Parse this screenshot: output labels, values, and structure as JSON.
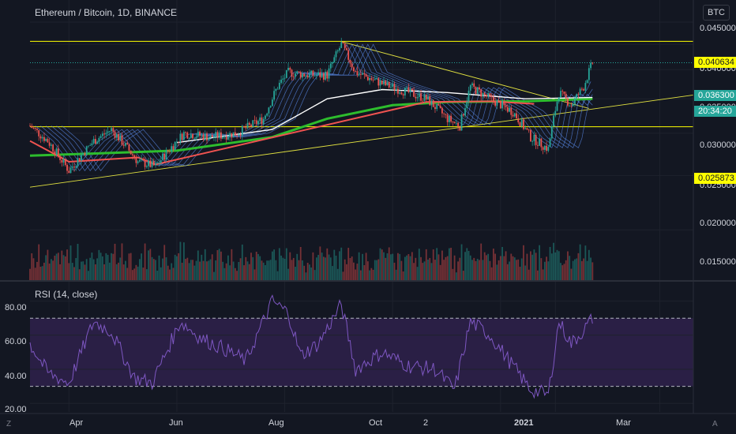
{
  "header": {
    "symbol_title": "Ethereum / Bitcoin, 1D, BINANCE",
    "currency_badge": "BTC"
  },
  "price_axis": {
    "ticks": [
      "0.045000",
      "0.040000",
      "0.035000",
      "0.030000",
      "0.025000",
      "0.020000",
      "0.015000"
    ],
    "level_top": "0.040634",
    "level_bottom": "0.025873",
    "last_price": "0.036300",
    "countdown": "20:34:20"
  },
  "rsi_panel": {
    "title": "RSI (14, close)",
    "ticks": [
      "80.00",
      "60.00",
      "40.00",
      "20.00"
    ]
  },
  "time_axis": {
    "labels": [
      "Apr",
      "Jun",
      "Aug",
      "Oct",
      "2",
      "2021",
      "Mar"
    ]
  },
  "corner_icons": {
    "left": "Z",
    "right": "A"
  },
  "colors": {
    "background": "#131722",
    "up": "#26a69a",
    "down": "#ef5350",
    "level_line": "#ffff00",
    "ma_green": "#2dbd2d",
    "ma_white": "#ffffff",
    "ribbon": "#5b8def",
    "rsi_line": "#7e57c2",
    "rsi_band": "#2a1f45"
  },
  "chart_data": [
    {
      "type": "candlestick",
      "title": "Ethereum / Bitcoin, 1D, BINANCE",
      "x_range": [
        "2020-03-10",
        "2021-03-20"
      ],
      "ylim": [
        0.0115,
        0.0477
      ],
      "y_scale": "log",
      "horizontal_levels": [
        0.040634,
        0.025873
      ],
      "last_price": 0.0363,
      "price_path": [
        [
          "2020-03-10",
          0.026
        ],
        [
          "2020-03-20",
          0.024
        ],
        [
          "2020-04-01",
          0.0205
        ],
        [
          "2020-04-15",
          0.024
        ],
        [
          "2020-04-25",
          0.0255
        ],
        [
          "2020-05-10",
          0.0215
        ],
        [
          "2020-05-20",
          0.021
        ],
        [
          "2020-06-05",
          0.025
        ],
        [
          "2020-06-20",
          0.0245
        ],
        [
          "2020-07-05",
          0.025
        ],
        [
          "2020-07-20",
          0.027
        ],
        [
          "2020-07-28",
          0.032
        ],
        [
          "2020-08-03",
          0.0345
        ],
        [
          "2020-08-15",
          0.034
        ],
        [
          "2020-08-25",
          0.034
        ],
        [
          "2020-09-02",
          0.04
        ],
        [
          "2020-09-10",
          0.0345
        ],
        [
          "2020-09-25",
          0.0325
        ],
        [
          "2020-10-10",
          0.031
        ],
        [
          "2020-10-20",
          0.03
        ],
        [
          "2020-11-01",
          0.027
        ],
        [
          "2020-11-08",
          0.026
        ],
        [
          "2020-11-14",
          0.032
        ],
        [
          "2020-11-25",
          0.03
        ],
        [
          "2020-12-08",
          0.028
        ],
        [
          "2020-12-18",
          0.0245
        ],
        [
          "2020-12-28",
          0.023
        ],
        [
          "2021-01-03",
          0.031
        ],
        [
          "2021-01-10",
          0.029
        ],
        [
          "2021-01-17",
          0.032
        ],
        [
          "2021-01-22",
          0.0363
        ]
      ],
      "moving_averages": [
        {
          "color": "#2dbd2d",
          "path": [
            [
              "2020-03-10",
              0.0222
            ],
            [
              "2020-06-01",
              0.0228
            ],
            [
              "2020-07-25",
              0.0245
            ],
            [
              "2020-08-25",
              0.027
            ],
            [
              "2020-10-01",
              0.029
            ],
            [
              "2020-11-01",
              0.0295
            ],
            [
              "2020-12-15",
              0.0296
            ],
            [
              "2021-01-22",
              0.03
            ]
          ]
        },
        {
          "color": "#ffffff",
          "path": [
            [
              "2020-06-01",
              0.0238
            ],
            [
              "2020-07-25",
              0.0255
            ],
            [
              "2020-08-25",
              0.03
            ],
            [
              "2020-09-25",
              0.0315
            ],
            [
              "2020-11-01",
              0.031
            ],
            [
              "2020-12-15",
              0.03
            ],
            [
              "2021-01-22",
              0.0302
            ]
          ]
        },
        {
          "color": "#ef5350",
          "path": [
            [
              "2020-03-10",
              0.024
            ],
            [
              "2020-04-01",
              0.0215
            ],
            [
              "2020-05-10",
              0.022
            ],
            [
              "2020-05-20",
              0.0212
            ],
            [
              "2020-10-20",
              0.0295
            ],
            [
              "2020-11-25",
              0.0296
            ],
            [
              "2020-12-20",
              0.0292
            ]
          ]
        }
      ]
    },
    {
      "type": "line",
      "title": "RSI (14, close)",
      "x_range": [
        "2020-03-10",
        "2021-03-20"
      ],
      "ylim": [
        15,
        90
      ],
      "bands": [
        30,
        70
      ],
      "values": [
        [
          "2020-03-10",
          55
        ],
        [
          "2020-03-20",
          38
        ],
        [
          "2020-04-01",
          32
        ],
        [
          "2020-04-15",
          68
        ],
        [
          "2020-04-25",
          62
        ],
        [
          "2020-05-08",
          35
        ],
        [
          "2020-05-18",
          32
        ],
        [
          "2020-06-03",
          68
        ],
        [
          "2020-06-15",
          58
        ],
        [
          "2020-06-28",
          52
        ],
        [
          "2020-07-10",
          45
        ],
        [
          "2020-07-25",
          80
        ],
        [
          "2020-08-03",
          73
        ],
        [
          "2020-08-10",
          48
        ],
        [
          "2020-08-20",
          55
        ],
        [
          "2020-09-02",
          78
        ],
        [
          "2020-09-10",
          40
        ],
        [
          "2020-09-25",
          50
        ],
        [
          "2020-10-10",
          42
        ],
        [
          "2020-10-25",
          40
        ],
        [
          "2020-11-05",
          28
        ],
        [
          "2020-11-14",
          68
        ],
        [
          "2020-11-25",
          60
        ],
        [
          "2020-12-08",
          42
        ],
        [
          "2020-12-18",
          28
        ],
        [
          "2020-12-28",
          25
        ],
        [
          "2021-01-03",
          68
        ],
        [
          "2021-01-10",
          55
        ],
        [
          "2021-01-17",
          63
        ],
        [
          "2021-01-22",
          70
        ]
      ]
    }
  ]
}
